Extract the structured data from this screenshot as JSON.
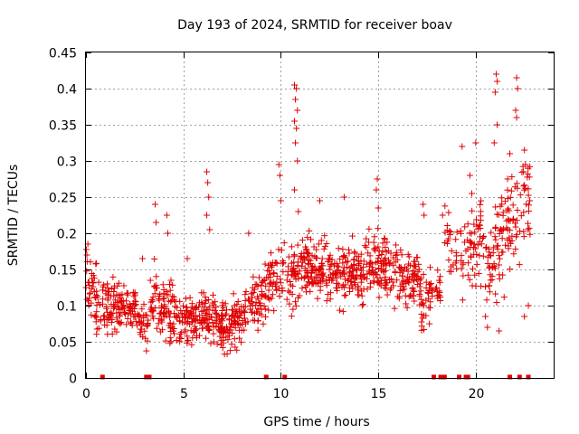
{
  "chart_data": {
    "type": "scatter",
    "title": "Day 193 of 2024, SRMTID for receiver boav",
    "xlabel": "GPS time / hours",
    "ylabel": "SRMTID / TECUs",
    "xlim": [
      0,
      24
    ],
    "ylim": [
      0,
      0.45
    ],
    "grid": true,
    "marker": "+",
    "colors": {
      "series": "#e00000",
      "grid": "#a0a0a0",
      "axis": "#000000"
    },
    "x_ticks": [
      0,
      5,
      10,
      15,
      20
    ],
    "x_tick_labels": [
      "0",
      "5",
      "10",
      "15",
      "20"
    ],
    "y_ticks": [
      0,
      0.05,
      0.1,
      0.15,
      0.2,
      0.25,
      0.3,
      0.35,
      0.4,
      0.45
    ],
    "y_tick_labels": [
      "0",
      "0.05",
      "0.1",
      "0.15",
      "0.2",
      "0.25",
      "0.3",
      "0.35",
      "0.4",
      "0.45"
    ],
    "gap_markers_x": [
      0.85,
      3.1,
      3.25,
      9.25,
      10.2,
      17.85,
      18.2,
      18.4,
      19.15,
      19.5,
      19.6,
      21.75,
      22.25,
      22.7
    ],
    "segments": [
      {
        "x": [
          0.0,
          0.6
        ],
        "base": [
          0.14,
          0.11
        ],
        "spread": 0.04,
        "n": 40
      },
      {
        "x": [
          0.6,
          1.5
        ],
        "base": [
          0.1,
          0.1
        ],
        "spread": 0.03,
        "n": 55
      },
      {
        "x": [
          1.5,
          2.6
        ],
        "base": [
          0.1,
          0.085
        ],
        "spread": 0.03,
        "n": 70
      },
      {
        "x": [
          2.6,
          3.2
        ],
        "base": [
          0.08,
          0.07
        ],
        "spread": 0.03,
        "n": 30
      },
      {
        "x": [
          3.3,
          4.4
        ],
        "base": [
          0.11,
          0.09
        ],
        "spread": 0.035,
        "n": 75
      },
      {
        "x": [
          4.4,
          5.7
        ],
        "base": [
          0.085,
          0.08
        ],
        "spread": 0.03,
        "n": 90
      },
      {
        "x": [
          5.7,
          7.0
        ],
        "base": [
          0.085,
          0.08
        ],
        "spread": 0.03,
        "n": 90
      },
      {
        "x": [
          7.0,
          8.0
        ],
        "base": [
          0.07,
          0.08
        ],
        "spread": 0.03,
        "n": 75
      },
      {
        "x": [
          8.0,
          9.3
        ],
        "base": [
          0.09,
          0.11
        ],
        "spread": 0.035,
        "n": 75
      },
      {
        "x": [
          9.3,
          10.2
        ],
        "base": [
          0.13,
          0.15
        ],
        "spread": 0.035,
        "n": 50
      },
      {
        "x": [
          10.3,
          11.5
        ],
        "base": [
          0.13,
          0.16
        ],
        "spread": 0.035,
        "n": 85
      },
      {
        "x": [
          11.5,
          13.0
        ],
        "base": [
          0.15,
          0.14
        ],
        "spread": 0.035,
        "n": 105
      },
      {
        "x": [
          13.0,
          14.5
        ],
        "base": [
          0.14,
          0.15
        ],
        "spread": 0.035,
        "n": 100
      },
      {
        "x": [
          14.5,
          16.0
        ],
        "base": [
          0.16,
          0.15
        ],
        "spread": 0.035,
        "n": 100
      },
      {
        "x": [
          16.0,
          17.2
        ],
        "base": [
          0.14,
          0.13
        ],
        "spread": 0.03,
        "n": 80
      },
      {
        "x": [
          17.2,
          17.8
        ],
        "base": [
          0.09,
          0.13
        ],
        "spread": 0.035,
        "n": 35
      },
      {
        "x": [
          17.9,
          18.2
        ],
        "base": [
          0.12,
          0.12
        ],
        "spread": 0.025,
        "n": 15
      },
      {
        "x": [
          18.4,
          19.1
        ],
        "base": [
          0.2,
          0.17
        ],
        "spread": 0.035,
        "n": 25
      },
      {
        "x": [
          19.2,
          20.4
        ],
        "base": [
          0.17,
          0.2
        ],
        "spread": 0.05,
        "n": 60
      },
      {
        "x": [
          20.4,
          21.7
        ],
        "base": [
          0.15,
          0.21
        ],
        "spread": 0.06,
        "n": 75
      },
      {
        "x": [
          21.7,
          22.8
        ],
        "base": [
          0.22,
          0.25
        ],
        "spread": 0.06,
        "n": 55
      }
    ],
    "outliers": [
      {
        "x": 0.1,
        "y": 0.185
      },
      {
        "x": 0.05,
        "y": 0.17
      },
      {
        "x": 2.9,
        "y": 0.165
      },
      {
        "x": 3.55,
        "y": 0.24
      },
      {
        "x": 3.6,
        "y": 0.215
      },
      {
        "x": 4.15,
        "y": 0.225
      },
      {
        "x": 4.2,
        "y": 0.2
      },
      {
        "x": 5.2,
        "y": 0.165
      },
      {
        "x": 6.2,
        "y": 0.285
      },
      {
        "x": 6.25,
        "y": 0.27
      },
      {
        "x": 6.3,
        "y": 0.25
      },
      {
        "x": 6.2,
        "y": 0.225
      },
      {
        "x": 6.35,
        "y": 0.205
      },
      {
        "x": 8.35,
        "y": 0.2
      },
      {
        "x": 9.9,
        "y": 0.295
      },
      {
        "x": 9.95,
        "y": 0.28
      },
      {
        "x": 10.0,
        "y": 0.245
      },
      {
        "x": 10.7,
        "y": 0.405
      },
      {
        "x": 10.8,
        "y": 0.4
      },
      {
        "x": 10.75,
        "y": 0.385
      },
      {
        "x": 10.85,
        "y": 0.37
      },
      {
        "x": 10.7,
        "y": 0.355
      },
      {
        "x": 10.8,
        "y": 0.345
      },
      {
        "x": 10.75,
        "y": 0.325
      },
      {
        "x": 10.85,
        "y": 0.3
      },
      {
        "x": 10.7,
        "y": 0.26
      },
      {
        "x": 10.9,
        "y": 0.23
      },
      {
        "x": 12.0,
        "y": 0.245
      },
      {
        "x": 13.25,
        "y": 0.25
      },
      {
        "x": 14.95,
        "y": 0.275
      },
      {
        "x": 14.9,
        "y": 0.26
      },
      {
        "x": 15.0,
        "y": 0.235
      },
      {
        "x": 17.3,
        "y": 0.24
      },
      {
        "x": 17.35,
        "y": 0.225
      },
      {
        "x": 18.3,
        "y": 0.225
      },
      {
        "x": 19.3,
        "y": 0.32
      },
      {
        "x": 20.0,
        "y": 0.325
      },
      {
        "x": 19.7,
        "y": 0.28
      },
      {
        "x": 19.8,
        "y": 0.255
      },
      {
        "x": 21.05,
        "y": 0.42
      },
      {
        "x": 21.1,
        "y": 0.41
      },
      {
        "x": 21.0,
        "y": 0.395
      },
      {
        "x": 21.1,
        "y": 0.35
      },
      {
        "x": 20.95,
        "y": 0.325
      },
      {
        "x": 22.1,
        "y": 0.415
      },
      {
        "x": 22.15,
        "y": 0.4
      },
      {
        "x": 22.05,
        "y": 0.37
      },
      {
        "x": 22.1,
        "y": 0.36
      },
      {
        "x": 21.75,
        "y": 0.31
      },
      {
        "x": 22.5,
        "y": 0.315
      },
      {
        "x": 22.55,
        "y": 0.295
      },
      {
        "x": 22.45,
        "y": 0.285
      },
      {
        "x": 21.2,
        "y": 0.065
      },
      {
        "x": 22.7,
        "y": 0.1
      },
      {
        "x": 22.5,
        "y": 0.085
      },
      {
        "x": 20.5,
        "y": 0.085
      },
      {
        "x": 20.6,
        "y": 0.07
      }
    ]
  }
}
